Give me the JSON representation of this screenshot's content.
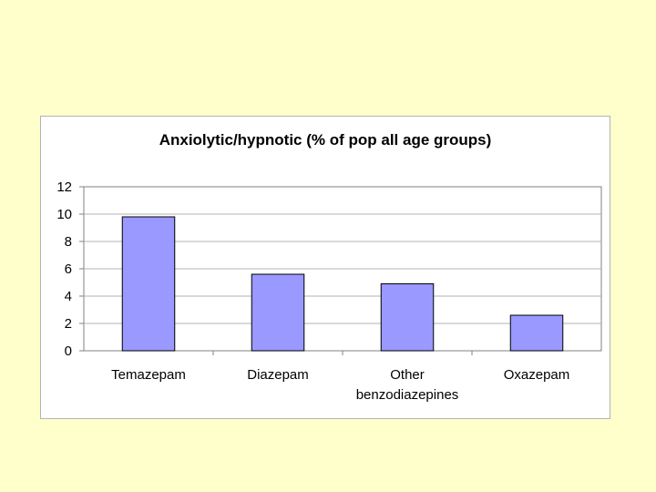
{
  "chart_data": {
    "type": "bar",
    "title": "Anxiolytic/hypnotic (% of pop all age groups)",
    "categories": [
      [
        "Temazepam"
      ],
      [
        "Diazepam"
      ],
      [
        "Other",
        "benzodiazepines"
      ],
      [
        "Oxazepam"
      ]
    ],
    "values": [
      9.8,
      5.6,
      4.9,
      2.6
    ],
    "ylim": [
      0,
      12
    ],
    "yticks": [
      0,
      2,
      4,
      6,
      8,
      10,
      12
    ],
    "grid": true,
    "colors": {
      "bar_fill": "#9999ff",
      "bar_stroke": "#000000",
      "grid": "#b3b3b3",
      "axis": "#808080",
      "page_background": "#ffffcc"
    }
  }
}
